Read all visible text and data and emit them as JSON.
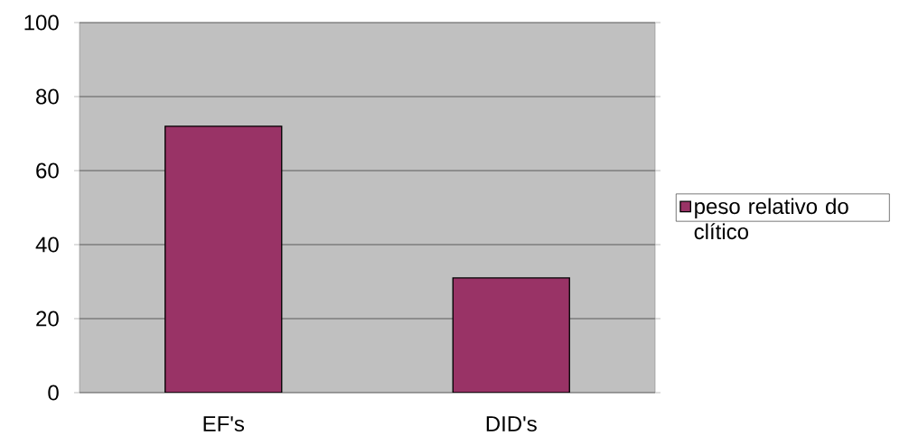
{
  "chart_data": {
    "type": "bar",
    "categories": [
      "EF's",
      "DID's"
    ],
    "series": [
      {
        "name": "peso relativo do clítico",
        "color": "#993366",
        "values": [
          72,
          31
        ]
      }
    ],
    "ylim": [
      0,
      100
    ],
    "yticks": [
      0,
      20,
      40,
      60,
      80,
      100
    ],
    "grid": "y",
    "legend": "right"
  }
}
